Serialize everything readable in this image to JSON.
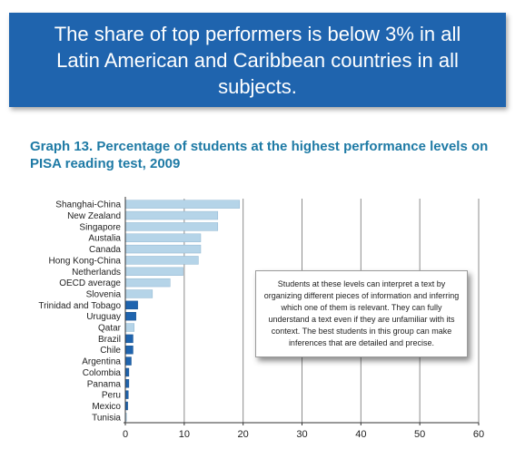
{
  "banner": {
    "text": "The share of top performers is below 3% in all Latin American and Caribbean countries in all subjects."
  },
  "graph_title": "Graph 13. Percentage of students at the highest performance levels on PISA reading test, 2009",
  "note": "Students at these levels can interpret a text by organizing different pieces of information and inferring which one of them is relevant. They can fully understand a text even if they are unfamiliar with its context. The best students in this group can make inferences that are detailed and precise.",
  "colors": {
    "banner": "#1f64ae",
    "title": "#1e7aa5",
    "bar_light": "#b5d4e8",
    "bar_dark": "#1f64ae"
  },
  "chart_data": {
    "type": "bar",
    "orientation": "horizontal",
    "categories": [
      "Shanghai-China",
      "New Zealand",
      "Singapore",
      "Austalia",
      "Canada",
      "Hong Kong-China",
      "Netherlands",
      "OECD average",
      "Slovenia",
      "Trinidad and Tobago",
      "Uruguay",
      "Qatar",
      "Brazil",
      "Chile",
      "Argentina",
      "Colombia",
      "Panama",
      "Peru",
      "Mexico",
      "Tunisia"
    ],
    "values": [
      19.4,
      15.7,
      15.7,
      12.8,
      12.8,
      12.4,
      9.8,
      7.6,
      4.6,
      2.1,
      1.8,
      1.5,
      1.3,
      1.3,
      1.0,
      0.6,
      0.6,
      0.5,
      0.4,
      0.2
    ],
    "highlight": [
      "Trinidad and Tobago",
      "Uruguay",
      "Brazil",
      "Chile",
      "Argentina",
      "Colombia",
      "Panama",
      "Peru",
      "Mexico"
    ],
    "xlim": [
      0,
      60
    ],
    "xticks": [
      0,
      10,
      20,
      30,
      40,
      50,
      60
    ],
    "grid": true
  }
}
